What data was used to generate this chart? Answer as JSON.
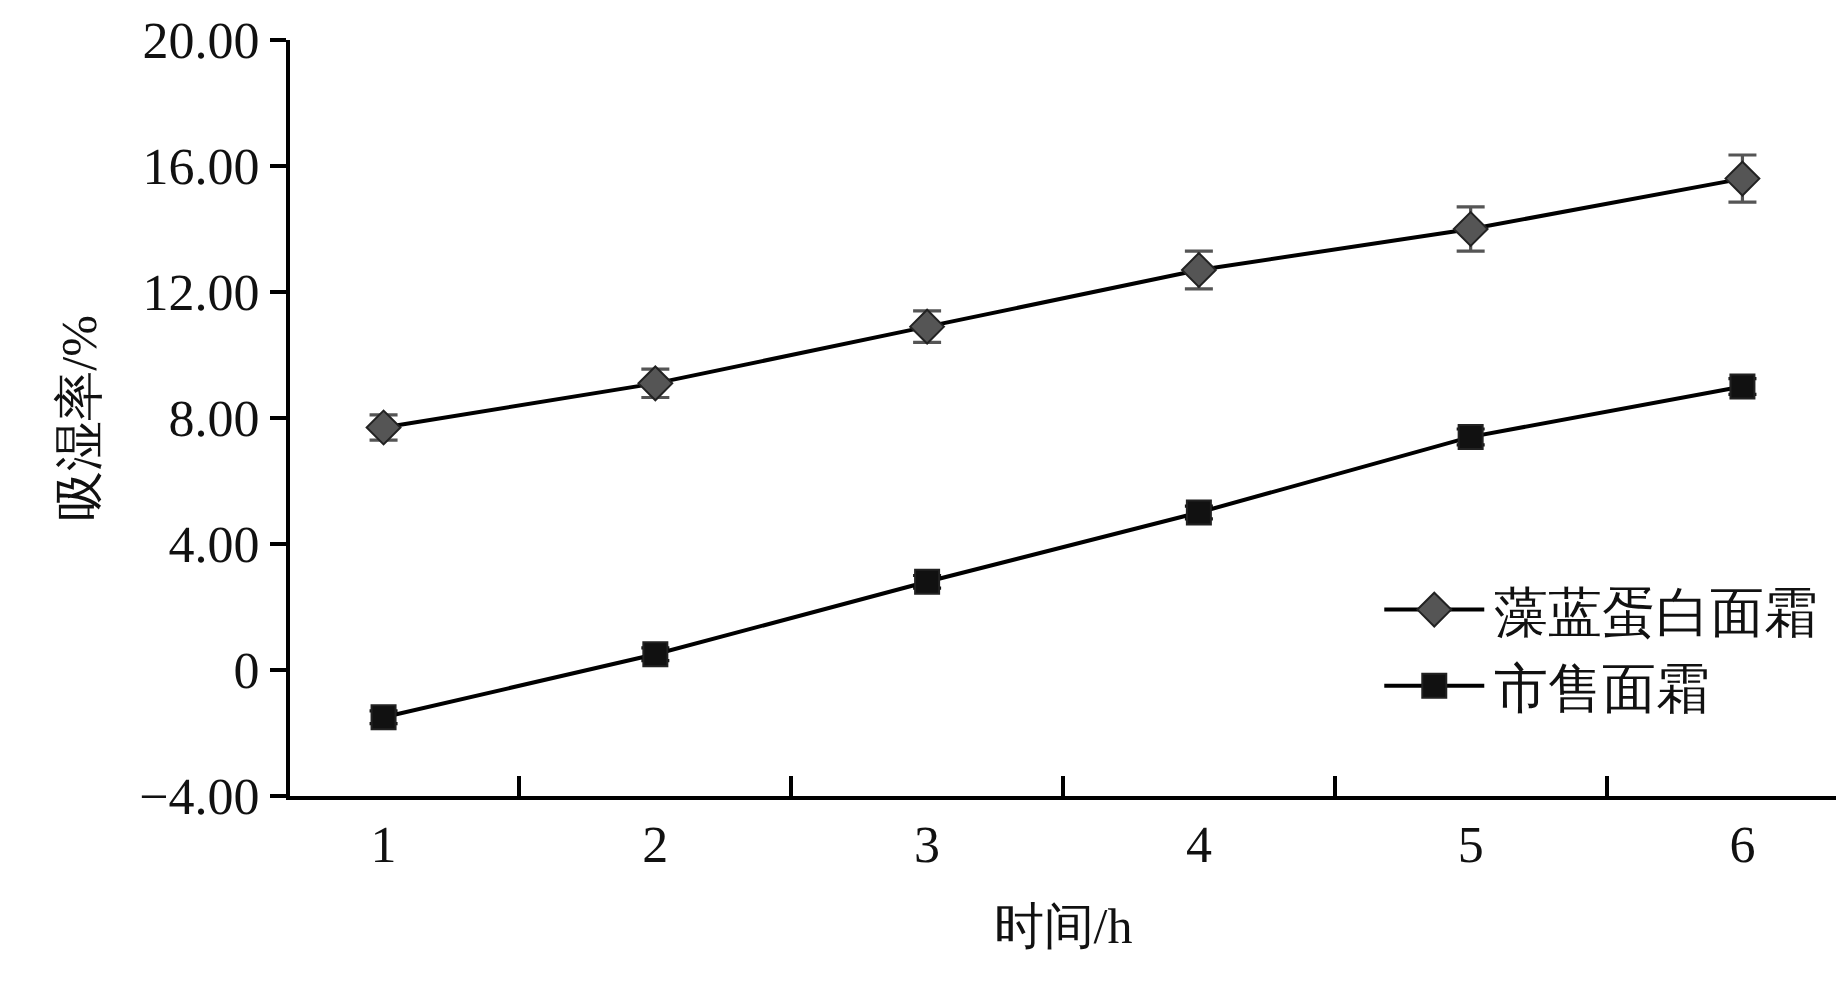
{
  "chart_data": {
    "type": "line",
    "xlabel": "时间/h",
    "ylabel": "吸湿率/%",
    "categories": [
      "1",
      "2",
      "3",
      "4",
      "5",
      "6"
    ],
    "series": [
      {
        "name": "藻蓝蛋白面霜",
        "color": "#555555",
        "marker": "diamond",
        "values": [
          7.7,
          9.1,
          10.9,
          12.7,
          14.0,
          15.6
        ],
        "errors": [
          0.4,
          0.45,
          0.5,
          0.6,
          0.7,
          0.75
        ]
      },
      {
        "name": "市售面霜",
        "color": "#111111",
        "marker": "square",
        "values": [
          -1.5,
          0.5,
          2.8,
          5.0,
          7.4,
          9.0
        ],
        "errors": [
          0.2,
          0.2,
          0.2,
          0.2,
          0.25,
          0.25
        ]
      }
    ],
    "ylim": [
      -4,
      20
    ],
    "yticks": [
      {
        "value": -4,
        "label": "−4.00"
      },
      0,
      {
        "value": 4,
        "label": "4.00"
      },
      {
        "value": 8,
        "label": "8.00"
      },
      {
        "value": 12,
        "label": "12.00"
      },
      {
        "value": 16,
        "label": "16.00"
      },
      {
        "value": 20,
        "label": "20.00"
      }
    ],
    "legend": "bottom right",
    "line_style": "solid"
  }
}
